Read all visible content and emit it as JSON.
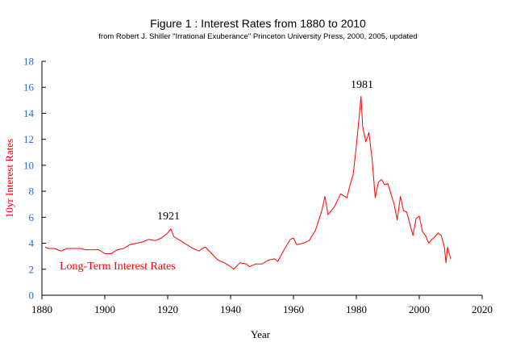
{
  "colors": {
    "series": "#ff0000",
    "y_tick_text": "#3366cc",
    "y_axis_title": "#ff0000",
    "axis": "#000000",
    "text": "#000000"
  },
  "chart_data": {
    "type": "line",
    "title": "Figure 1 : Interest Rates from 1880 to 2010",
    "subtitle": "from Robert J. Shiller \"Irrational Exuberance\" Princeton University Press, 2000, 2005, updated",
    "xlabel": "Year",
    "ylabel": "10yr Interest Rates",
    "xlim": [
      1880,
      2020
    ],
    "ylim": [
      0,
      18
    ],
    "x_ticks": [
      1880,
      1900,
      1920,
      1940,
      1960,
      1980,
      2000,
      2020
    ],
    "y_ticks": [
      0,
      2,
      4,
      6,
      8,
      10,
      12,
      14,
      16,
      18
    ],
    "grid": false,
    "legend": "none",
    "annotations": [
      {
        "text": "1921",
        "x": 1921,
        "y": 5.6
      },
      {
        "text": "1981",
        "x": 1981,
        "y": 15.6
      }
    ],
    "series": [
      {
        "name": "Long-Term Interest Rates",
        "x": [
          1881,
          1882,
          1884,
          1886,
          1888,
          1890,
          1892,
          1894,
          1896,
          1898,
          1900,
          1902,
          1904,
          1906,
          1908,
          1910,
          1912,
          1914,
          1916,
          1918,
          1920,
          1921,
          1922,
          1924,
          1926,
          1928,
          1930,
          1931,
          1932,
          1934,
          1936,
          1938,
          1940,
          1941,
          1943,
          1945,
          1946,
          1948,
          1950,
          1952,
          1954,
          1955,
          1957,
          1959,
          1960,
          1961,
          1963,
          1965,
          1967,
          1969,
          1970,
          1971,
          1973,
          1975,
          1977,
          1978,
          1979,
          1980,
          1981,
          1981.5,
          1982,
          1983,
          1984,
          1985,
          1986,
          1987,
          1988,
          1989,
          1990,
          1992,
          1993,
          1994,
          1995,
          1996,
          1998,
          1999,
          2000,
          2001,
          2002,
          2003,
          2004,
          2005,
          2006,
          2007,
          2008,
          2008.5,
          2009,
          2010
        ],
        "values": [
          3.7,
          3.6,
          3.6,
          3.4,
          3.6,
          3.6,
          3.6,
          3.5,
          3.5,
          3.5,
          3.2,
          3.2,
          3.5,
          3.6,
          3.9,
          4.0,
          4.1,
          4.3,
          4.2,
          4.4,
          4.8,
          5.1,
          4.5,
          4.2,
          3.9,
          3.6,
          3.4,
          3.6,
          3.7,
          3.2,
          2.7,
          2.5,
          2.2,
          2.0,
          2.5,
          2.4,
          2.2,
          2.4,
          2.4,
          2.7,
          2.8,
          2.6,
          3.5,
          4.3,
          4.4,
          3.9,
          4.0,
          4.2,
          5.0,
          6.5,
          7.6,
          6.2,
          6.8,
          7.8,
          7.5,
          8.5,
          9.3,
          11.5,
          14.0,
          15.3,
          13.0,
          11.8,
          12.5,
          10.5,
          7.5,
          8.7,
          8.9,
          8.5,
          8.6,
          7.0,
          5.8,
          7.6,
          6.5,
          6.4,
          4.6,
          5.9,
          6.1,
          4.9,
          4.6,
          4.0,
          4.3,
          4.5,
          4.8,
          4.6,
          3.7,
          2.5,
          3.7,
          2.8
        ]
      }
    ]
  }
}
